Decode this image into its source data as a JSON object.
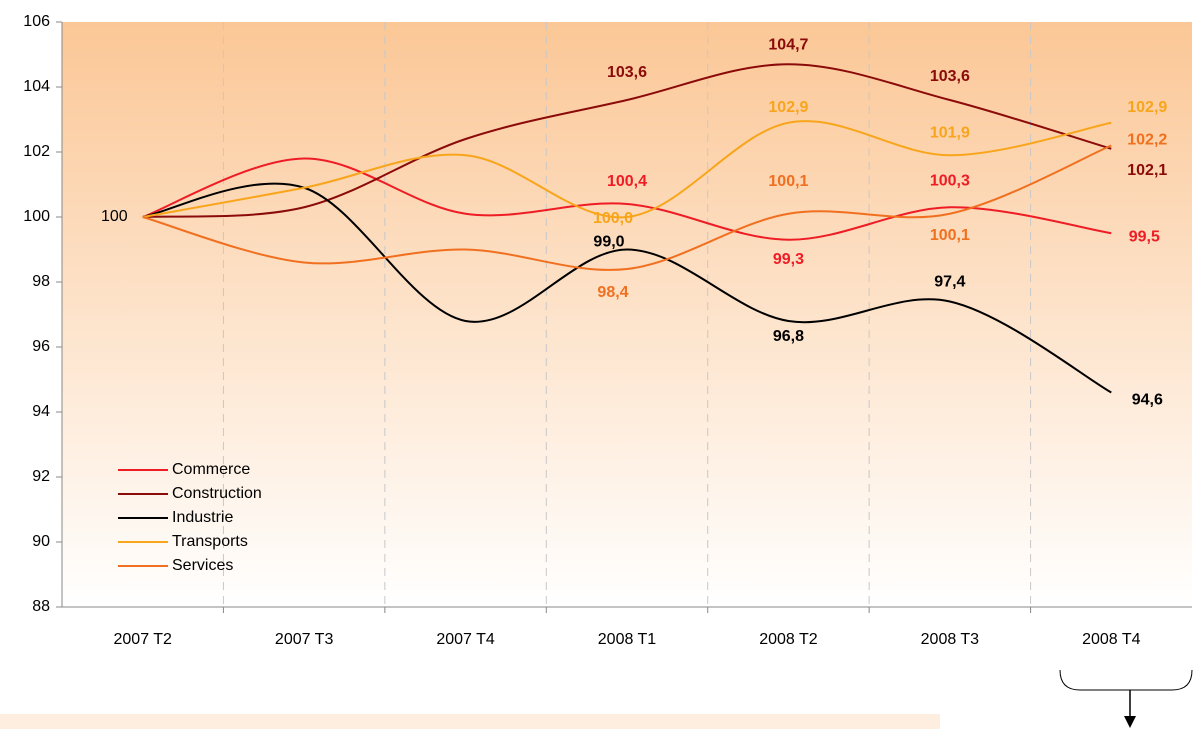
{
  "chart_data": {
    "type": "line",
    "categories": [
      "2007 T2",
      "2007 T3",
      "2007 T4",
      "2008 T1",
      "2008 T2",
      "2008 T3",
      "2008 T4"
    ],
    "series": [
      {
        "name": "Commerce",
        "color": "#ee1c25",
        "values": [
          100,
          101.8,
          100.1,
          100.4,
          99.3,
          100.3,
          99.5
        ],
        "value_labels": [
          "100",
          null,
          null,
          "100,4",
          "99,3",
          "100,3",
          "99,5"
        ]
      },
      {
        "name": "Construction",
        "color": "#8b0a0a",
        "values": [
          100,
          100.3,
          102.4,
          103.6,
          104.7,
          103.6,
          102.1
        ],
        "value_labels": [
          null,
          null,
          null,
          "103,6",
          "104,7",
          "103,6",
          "102,1"
        ]
      },
      {
        "name": "Industrie",
        "color": "#000000",
        "values": [
          100,
          100.9,
          96.8,
          99.0,
          96.8,
          97.4,
          94.6
        ],
        "value_labels": [
          null,
          null,
          null,
          "99,0",
          "96,8",
          "97,4",
          "94,6"
        ]
      },
      {
        "name": "Transports",
        "color": "#f8a51b",
        "values": [
          100,
          100.9,
          101.9,
          100.0,
          102.9,
          101.9,
          102.9
        ],
        "value_labels": [
          null,
          null,
          null,
          "100,0",
          "102,9",
          "101,9",
          "102,9"
        ]
      },
      {
        "name": "Services",
        "color": "#f07020",
        "values": [
          100,
          98.6,
          99.0,
          98.4,
          100.1,
          100.1,
          102.2
        ],
        "value_labels": [
          null,
          null,
          null,
          "98,4",
          "100,1",
          "100,1",
          "102,2"
        ]
      }
    ],
    "ylim": [
      88,
      106
    ],
    "yticks": [
      88,
      90,
      92,
      94,
      96,
      98,
      100,
      102,
      104,
      106
    ],
    "grid": true
  }
}
